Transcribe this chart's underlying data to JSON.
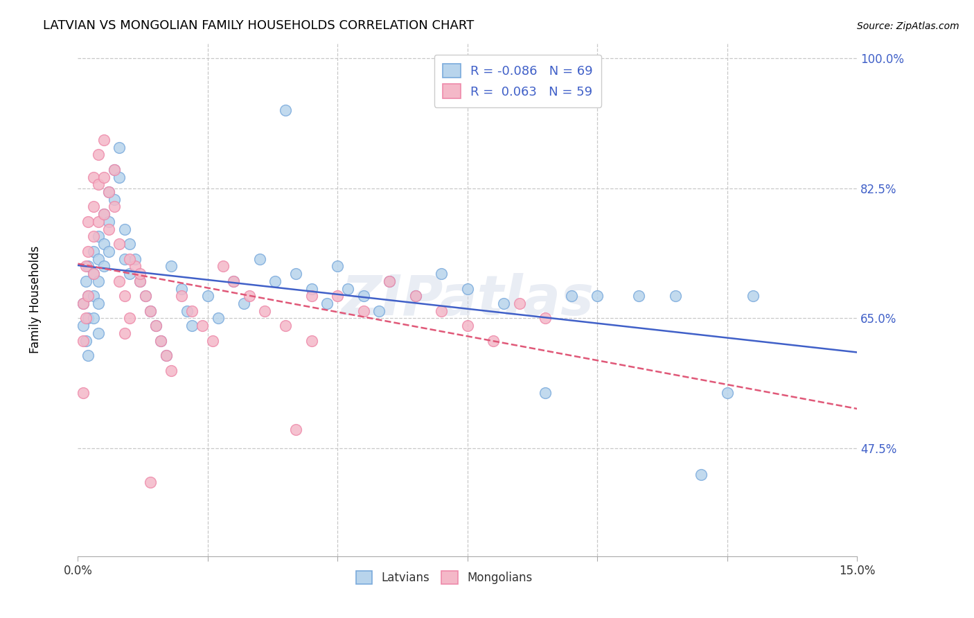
{
  "title": "LATVIAN VS MONGOLIAN FAMILY HOUSEHOLDS CORRELATION CHART",
  "source": "Source: ZipAtlas.com",
  "ylabel": "Family Households",
  "xmin": 0.0,
  "xmax": 0.15,
  "ymin": 0.33,
  "ymax": 1.02,
  "yticks": [
    0.475,
    0.65,
    0.825,
    1.0
  ],
  "ytick_labels": [
    "47.5%",
    "65.0%",
    "82.5%",
    "100.0%"
  ],
  "xtick_positions": [
    0.0,
    0.025,
    0.05,
    0.075,
    0.1,
    0.125,
    0.15
  ],
  "xtick_labels_shown": {
    "0.0": "0.0%",
    "0.15": "15.0%"
  },
  "legend_R_latvian": "-0.086",
  "legend_N_latvian": "69",
  "legend_R_mongolian": "0.063",
  "legend_N_mongolian": "59",
  "latvian_fill": "#b8d4ec",
  "mongolian_fill": "#f4b8c8",
  "latvian_edge": "#7aaadc",
  "mongolian_edge": "#ee8aaa",
  "trend_latvian_color": "#4060c8",
  "trend_mongolian_color": "#e05878",
  "background_color": "#ffffff",
  "grid_color": "#c8c8c8",
  "watermark": "ZIPatlas",
  "latvians_x": [
    0.001,
    0.001,
    0.0015,
    0.0015,
    0.002,
    0.002,
    0.002,
    0.002,
    0.003,
    0.003,
    0.003,
    0.003,
    0.004,
    0.004,
    0.004,
    0.004,
    0.004,
    0.005,
    0.005,
    0.005,
    0.006,
    0.006,
    0.006,
    0.007,
    0.007,
    0.008,
    0.008,
    0.009,
    0.009,
    0.01,
    0.01,
    0.011,
    0.012,
    0.013,
    0.014,
    0.015,
    0.016,
    0.017,
    0.018,
    0.02,
    0.021,
    0.022,
    0.025,
    0.027,
    0.03,
    0.032,
    0.035,
    0.038,
    0.04,
    0.042,
    0.045,
    0.048,
    0.05,
    0.052,
    0.055,
    0.058,
    0.06,
    0.065,
    0.07,
    0.075,
    0.082,
    0.09,
    0.095,
    0.1,
    0.108,
    0.115,
    0.12,
    0.125,
    0.13
  ],
  "latvians_y": [
    0.67,
    0.64,
    0.7,
    0.62,
    0.72,
    0.68,
    0.65,
    0.6,
    0.74,
    0.71,
    0.68,
    0.65,
    0.76,
    0.73,
    0.7,
    0.67,
    0.63,
    0.79,
    0.75,
    0.72,
    0.82,
    0.78,
    0.74,
    0.85,
    0.81,
    0.88,
    0.84,
    0.77,
    0.73,
    0.75,
    0.71,
    0.73,
    0.7,
    0.68,
    0.66,
    0.64,
    0.62,
    0.6,
    0.72,
    0.69,
    0.66,
    0.64,
    0.68,
    0.65,
    0.7,
    0.67,
    0.73,
    0.7,
    0.93,
    0.71,
    0.69,
    0.67,
    0.72,
    0.69,
    0.68,
    0.66,
    0.7,
    0.68,
    0.71,
    0.69,
    0.67,
    0.55,
    0.68,
    0.68,
    0.68,
    0.68,
    0.44,
    0.55,
    0.68
  ],
  "mongolians_x": [
    0.001,
    0.001,
    0.001,
    0.0015,
    0.0015,
    0.002,
    0.002,
    0.002,
    0.003,
    0.003,
    0.003,
    0.003,
    0.004,
    0.004,
    0.004,
    0.005,
    0.005,
    0.005,
    0.006,
    0.006,
    0.007,
    0.007,
    0.008,
    0.008,
    0.009,
    0.009,
    0.01,
    0.011,
    0.012,
    0.013,
    0.014,
    0.015,
    0.016,
    0.017,
    0.018,
    0.02,
    0.022,
    0.024,
    0.026,
    0.028,
    0.03,
    0.033,
    0.036,
    0.04,
    0.045,
    0.05,
    0.055,
    0.06,
    0.065,
    0.07,
    0.075,
    0.08,
    0.085,
    0.09,
    0.042,
    0.01,
    0.012,
    0.014,
    0.045
  ],
  "mongolians_y": [
    0.67,
    0.62,
    0.55,
    0.72,
    0.65,
    0.78,
    0.74,
    0.68,
    0.84,
    0.8,
    0.76,
    0.71,
    0.87,
    0.83,
    0.78,
    0.89,
    0.84,
    0.79,
    0.82,
    0.77,
    0.85,
    0.8,
    0.75,
    0.7,
    0.68,
    0.63,
    0.65,
    0.72,
    0.7,
    0.68,
    0.66,
    0.64,
    0.62,
    0.6,
    0.58,
    0.68,
    0.66,
    0.64,
    0.62,
    0.72,
    0.7,
    0.68,
    0.66,
    0.64,
    0.62,
    0.68,
    0.66,
    0.7,
    0.68,
    0.66,
    0.64,
    0.62,
    0.67,
    0.65,
    0.5,
    0.73,
    0.71,
    0.43,
    0.68
  ]
}
